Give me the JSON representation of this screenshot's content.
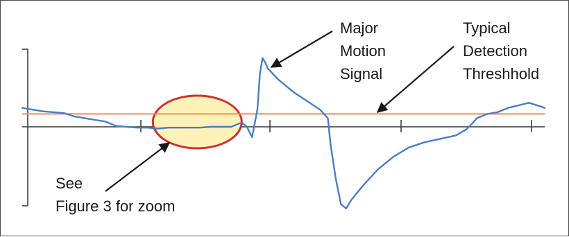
{
  "chart_data": {
    "type": "line",
    "title": "",
    "xlabel": "",
    "ylabel": "",
    "grid": false,
    "legend": "none",
    "colors": {
      "signal": "#4a7cc4",
      "threshold": "#f08a5a",
      "zoom_fill": "#fff2b8",
      "zoom_stroke": "#cf3030",
      "axis": "#333333",
      "frame": "#4a4a4a",
      "annotation": "#1a1a1a"
    },
    "threshold": 0.15,
    "zoom_region": [
      0.25,
      0.42
    ],
    "signal_x": [
      0,
      0.01,
      0.02,
      0.04,
      0.06,
      0.08,
      0.1,
      0.12,
      0.14,
      0.16,
      0.18,
      0.2,
      0.22,
      0.24,
      0.26,
      0.28,
      0.3,
      0.32,
      0.34,
      0.36,
      0.38,
      0.4,
      0.42,
      0.43,
      0.44,
      0.45,
      0.455,
      0.46,
      0.465,
      0.47,
      0.49,
      0.52,
      0.55,
      0.57,
      0.585,
      0.59,
      0.6,
      0.61,
      0.62,
      0.63,
      0.65,
      0.68,
      0.71,
      0.74,
      0.77,
      0.8,
      0.83,
      0.85,
      0.86,
      0.87,
      0.89,
      0.91,
      0.93,
      0.95,
      0.97,
      0.99,
      1.0
    ],
    "signal_y": [
      0.22,
      0.21,
      0.2,
      0.18,
      0.17,
      0.16,
      0.12,
      0.1,
      0.08,
      0.06,
      0.01,
      0.0,
      -0.01,
      -0.01,
      -0.02,
      -0.01,
      -0.01,
      -0.01,
      -0.01,
      0.0,
      0.0,
      0.0,
      0.05,
      0.0,
      -0.12,
      0.2,
      0.62,
      0.8,
      0.75,
      0.68,
      0.55,
      0.4,
      0.28,
      0.2,
      0.1,
      -0.2,
      -0.6,
      -0.9,
      -0.95,
      -0.85,
      -0.7,
      -0.5,
      -0.35,
      -0.24,
      -0.18,
      -0.14,
      -0.1,
      -0.03,
      0.03,
      0.1,
      0.15,
      0.17,
      0.22,
      0.25,
      0.28,
      0.24,
      0.22
    ],
    "annotations": {
      "peak": [
        "Major",
        "Motion",
        "Signal"
      ],
      "threshold": [
        "Typical",
        "Detection",
        "Threshhold"
      ],
      "zoom": [
        "See",
        "Figure 3 for zoom"
      ]
    }
  }
}
